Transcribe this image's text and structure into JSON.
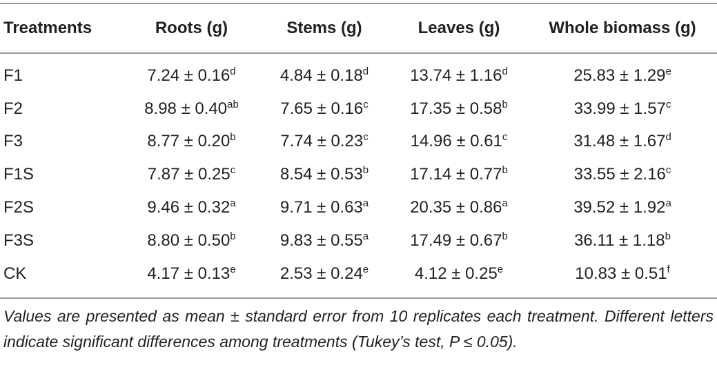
{
  "table": {
    "headers": [
      "Treatments",
      "Roots (g)",
      "Stems (g)",
      "Leaves (g)",
      "Whole biomass (g)"
    ],
    "rows": [
      [
        "F1",
        {
          "text": "7.24 ± 0.16",
          "sup": "d"
        },
        {
          "text": "4.84 ± 0.18",
          "sup": "d"
        },
        {
          "text": "13.74 ± 1.16",
          "sup": "d"
        },
        {
          "text": "25.83 ± 1.29",
          "sup": "e"
        }
      ],
      [
        "F2",
        {
          "text": "8.98 ± 0.40",
          "sup": "ab"
        },
        {
          "text": "7.65 ± 0.16",
          "sup": "c"
        },
        {
          "text": "17.35 ± 0.58",
          "sup": "b"
        },
        {
          "text": "33.99 ± 1.57",
          "sup": "c"
        }
      ],
      [
        "F3",
        {
          "text": "8.77 ± 0.20",
          "sup": "b"
        },
        {
          "text": "7.74 ± 0.23",
          "sup": "c"
        },
        {
          "text": "14.96 ± 0.61",
          "sup": "c"
        },
        {
          "text": "31.48 ± 1.67",
          "sup": "d"
        }
      ],
      [
        "F1S",
        {
          "text": "7.87 ± 0.25",
          "sup": "c"
        },
        {
          "text": "8.54 ± 0.53",
          "sup": "b"
        },
        {
          "text": "17.14 ± 0.77",
          "sup": "b"
        },
        {
          "text": "33.55 ± 2.16",
          "sup": "c"
        }
      ],
      [
        "F2S",
        {
          "text": "9.46 ± 0.32",
          "sup": "a"
        },
        {
          "text": "9.71 ± 0.63",
          "sup": "a"
        },
        {
          "text": "20.35 ± 0.86",
          "sup": "a"
        },
        {
          "text": "39.52 ± 1.92",
          "sup": "a"
        }
      ],
      [
        "F3S",
        {
          "text": "8.80 ± 0.50",
          "sup": "b"
        },
        {
          "text": "9.83 ± 0.55",
          "sup": "a"
        },
        {
          "text": "17.49 ± 0.67",
          "sup": "b"
        },
        {
          "text": "36.11 ± 1.18",
          "sup": "b"
        }
      ],
      [
        "CK",
        {
          "text": "4.17 ± 0.13",
          "sup": "e"
        },
        {
          "text": "2.53 ± 0.24",
          "sup": "e"
        },
        {
          "text": "4.12 ± 0.25",
          "sup": "e"
        },
        {
          "text": "10.83 ± 0.51",
          "sup": "f"
        }
      ]
    ],
    "footnote": "Values are presented as mean ± standard error from 10 replicates each treatment. Different letters indicate significant differences among treatments (Tukey’s test, P ≤ 0.05)."
  }
}
